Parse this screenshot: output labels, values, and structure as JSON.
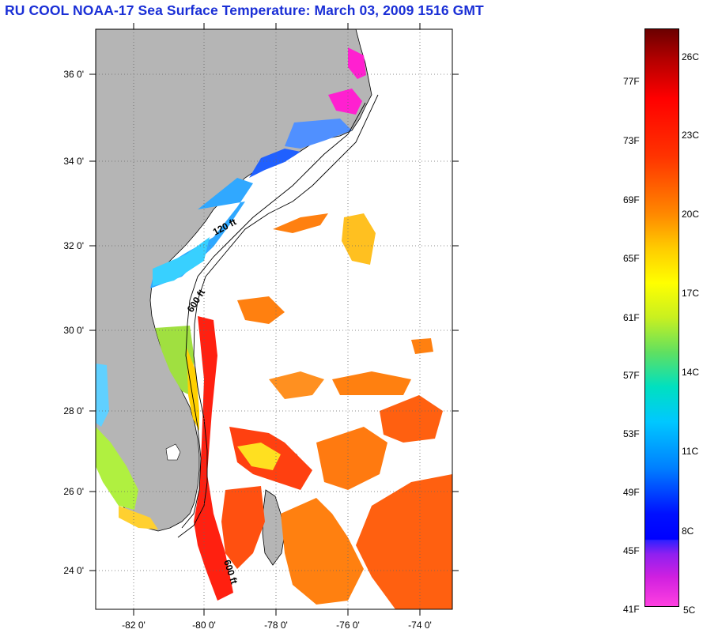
{
  "title": "RU COOL  NOAA-17  Sea Surface Temperature:  March 03, 2009 1516 GMT",
  "map": {
    "lat_labels": [
      "36 0'",
      "34 0'",
      "32 0'",
      "30 0'",
      "28 0'",
      "26 0'",
      "24 0'"
    ],
    "lon_labels": [
      "-82 0'",
      "-80 0'",
      "-78 0'",
      "-76 0'",
      "-74 0'"
    ],
    "isobath_labels": [
      "120 ft",
      "600 ft",
      "600 ft"
    ],
    "colors": {
      "land": "#b5b5b5",
      "cloud": "#ffffff",
      "coastline": "#000000"
    }
  },
  "scale": {
    "fahrenheit": [
      "77F",
      "73F",
      "69F",
      "65F",
      "61F",
      "57F",
      "53F",
      "49F",
      "45F",
      "41F"
    ],
    "celsius": [
      "26C",
      "23C",
      "20C",
      "17C",
      "14C",
      "11C",
      "8C",
      "5C"
    ]
  }
}
